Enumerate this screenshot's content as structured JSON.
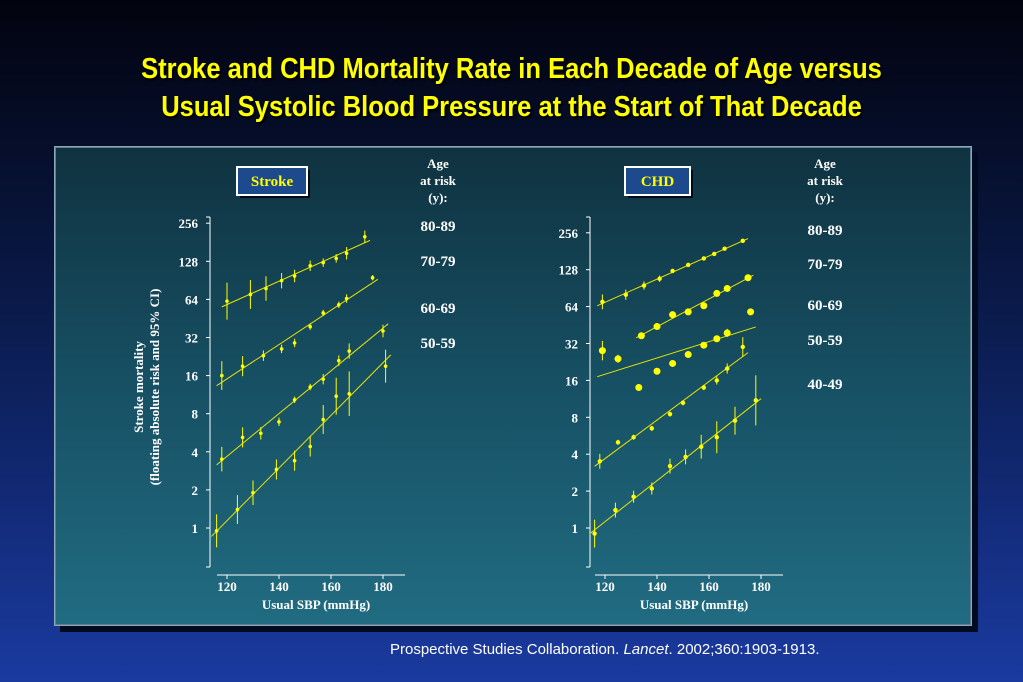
{
  "slide": {
    "title_line1": "Stroke and CHD Mortality Rate in Each Decade of Age versus",
    "title_line2": "Usual Systolic Blood Pressure at the Start of That Decade",
    "citation_authors": "Prospective Studies Collaboration.",
    "citation_journal": "Lancet",
    "citation_ref": ". 2002;360:1903-1913.",
    "colors": {
      "title": "#ffff00",
      "data": "#ffff00",
      "panel": "#175064",
      "text": "#ffffff"
    }
  },
  "chart_data": [
    {
      "type": "scatter",
      "title": "Stroke",
      "ylabel_line1": "Stroke mortality",
      "ylabel_line2": "(floating absolute risk and 95% CI)",
      "xlabel": "Usual SBP (mmHg)",
      "legend_title": [
        "Age",
        "at risk",
        "(y):"
      ],
      "y_scale": "log2",
      "ylim": [
        0.5,
        300
      ],
      "xlim": [
        115,
        185
      ],
      "xticks": [
        120,
        140,
        160,
        180
      ],
      "yticks": [
        1,
        2,
        4,
        8,
        16,
        32,
        64,
        128,
        256
      ],
      "series": [
        {
          "name": "80-89",
          "x": [
            120,
            129,
            135,
            141,
            146,
            152,
            157,
            162,
            166,
            173
          ],
          "y": [
            62,
            70,
            78,
            90,
            98,
            118,
            125,
            135,
            148,
            200
          ],
          "ci": [
            1.4,
            1.3,
            1.25,
            1.15,
            1.12,
            1.1,
            1.08,
            1.08,
            1.12,
            1.12
          ]
        },
        {
          "name": "70-79",
          "x": [
            118,
            126,
            134,
            141,
            146,
            152,
            157,
            163,
            166,
            176
          ],
          "y": [
            16,
            19,
            23,
            26,
            29,
            39,
            50,
            58,
            65,
            95
          ],
          "ci": [
            1.3,
            1.2,
            1.1,
            1.08,
            1.08,
            1.06,
            1.06,
            1.06,
            1.08,
            1.05
          ]
        },
        {
          "name": "60-69",
          "x": [
            118,
            126,
            133,
            140,
            146,
            152,
            157,
            163,
            167,
            180
          ],
          "y": [
            3.5,
            5.2,
            5.6,
            6.9,
            10.3,
            13,
            15,
            21,
            25,
            36
          ],
          "ci": [
            1.25,
            1.2,
            1.12,
            1.08,
            1.06,
            1.06,
            1.1,
            1.1,
            1.15,
            1.12
          ]
        },
        {
          "name": "50-59",
          "x": [
            116,
            124,
            130,
            139,
            146,
            152,
            157,
            162,
            167,
            181
          ],
          "y": [
            0.95,
            1.4,
            1.9,
            2.9,
            3.4,
            4.4,
            7.2,
            11,
            11.5,
            19
          ],
          "ci": [
            1.35,
            1.3,
            1.25,
            1.2,
            1.2,
            1.2,
            1.3,
            1.4,
            1.5,
            1.35
          ]
        }
      ]
    },
    {
      "type": "scatter",
      "title": "CHD",
      "xlabel": "Usual SBP (mmHg)",
      "legend_title": [
        "Age",
        "at risk",
        "(y):"
      ],
      "y_scale": "log2",
      "ylim": [
        0.5,
        300
      ],
      "xlim": [
        115,
        185
      ],
      "xticks": [
        120,
        140,
        160,
        180
      ],
      "yticks": [
        1,
        2,
        4,
        8,
        16,
        32,
        64,
        128,
        256
      ],
      "series": [
        {
          "name": "80-89",
          "x": [
            119,
            128,
            135,
            141,
            146,
            152,
            158,
            162,
            166,
            173
          ],
          "y": [
            70,
            80,
            95,
            108,
            125,
            140,
            158,
            172,
            190,
            220
          ],
          "ci": [
            1.15,
            1.1,
            1.08,
            1.06,
            1.04,
            1.04,
            1.03,
            1.03,
            1.03,
            1.03
          ]
        },
        {
          "name": "70-79",
          "x": [
            134,
            140,
            146,
            152,
            158,
            163,
            167,
            175
          ],
          "y": [
            37,
            44,
            55,
            58,
            65,
            82,
            90,
            110
          ],
          "ci": [
            1.03,
            1.03,
            1.02,
            1.02,
            1.02,
            1.02,
            1.02,
            1.02
          ]
        },
        {
          "name": "60-69",
          "x": [
            119,
            125,
            133,
            140,
            146,
            152,
            158,
            163,
            167,
            176
          ],
          "y": [
            28,
            24,
            14,
            19,
            22,
            26,
            31,
            35,
            39,
            58
          ],
          "ci": [
            1.2,
            1.08,
            1.05,
            1.03,
            1.03,
            1.03,
            1.03,
            1.03,
            1.08,
            1.05
          ]
        },
        {
          "name": "50-59",
          "x": [
            118,
            125,
            131,
            138,
            145,
            150,
            158,
            163,
            167,
            173
          ],
          "y": [
            3.5,
            5,
            5.5,
            6.5,
            8.5,
            10.5,
            14,
            16,
            20,
            30
          ],
          "ci": [
            1.15,
            1.05,
            1.05,
            1.05,
            1.05,
            1.05,
            1.05,
            1.08,
            1.1,
            1.2
          ]
        },
        {
          "name": "40-49",
          "x": [
            116,
            124,
            131,
            138,
            145,
            151,
            157,
            163,
            170,
            178
          ],
          "y": [
            0.9,
            1.4,
            1.8,
            2.1,
            3.2,
            3.8,
            4.6,
            5.5,
            7.5,
            11
          ],
          "ci": [
            1.3,
            1.15,
            1.12,
            1.12,
            1.15,
            1.15,
            1.25,
            1.35,
            1.3,
            1.6
          ]
        }
      ]
    }
  ]
}
